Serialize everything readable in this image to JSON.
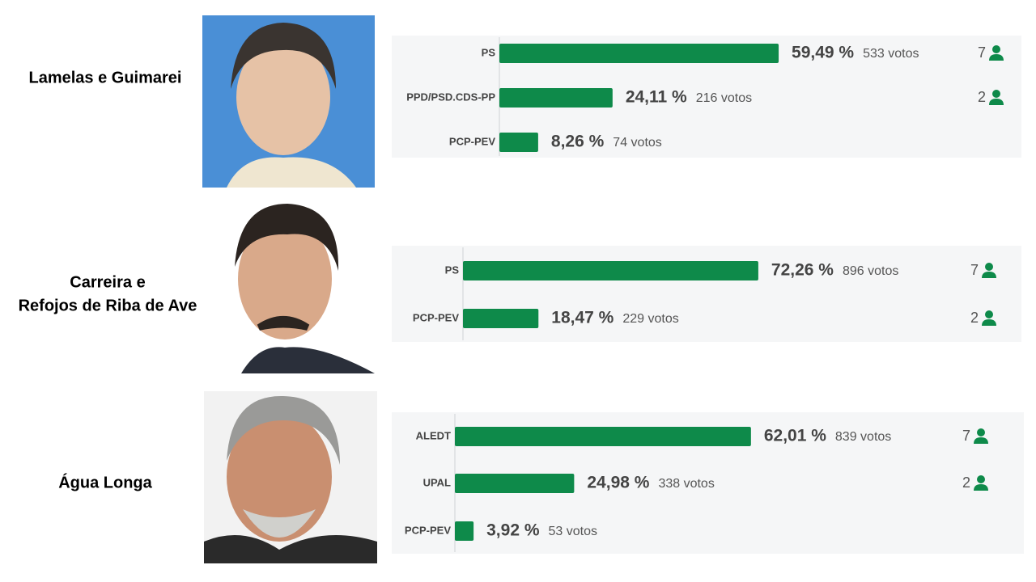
{
  "chart_data": [
    {
      "type": "bar",
      "location": [
        "Lamelas e Guimarei"
      ],
      "categories": [
        "PS",
        "PPD/PSD.CDS-PP",
        "PCP-PEV"
      ],
      "values": [
        59.49,
        24.11,
        8.26
      ],
      "value_labels": [
        "59,49 %",
        "24,11 %",
        "8,26 %"
      ],
      "votes": [
        "533 votos",
        "216 votos",
        "74 votos"
      ],
      "seats": [
        7,
        2,
        null
      ],
      "xlim": [
        0,
        100
      ],
      "color": "#0e8a4a"
    },
    {
      "type": "bar",
      "location": [
        "Carreira e",
        "Refojos de Riba de Ave"
      ],
      "categories": [
        "PS",
        "PCP-PEV"
      ],
      "values": [
        72.26,
        18.47
      ],
      "value_labels": [
        "72,26 %",
        "18,47 %"
      ],
      "votes": [
        "896 votos",
        "229 votos"
      ],
      "seats": [
        7,
        2
      ],
      "xlim": [
        0,
        100
      ],
      "color": "#0e8a4a"
    },
    {
      "type": "bar",
      "location": [
        "Água Longa"
      ],
      "categories": [
        "ALEDT",
        "UPAL",
        "PCP-PEV"
      ],
      "values": [
        62.01,
        24.98,
        3.92
      ],
      "value_labels": [
        "62,01 %",
        "24,98 %",
        "3,92 %"
      ],
      "votes": [
        "839 votos",
        "338 votos",
        "53 votos"
      ],
      "seats": [
        7,
        2,
        null
      ],
      "xlim": [
        0,
        100
      ],
      "color": "#0e8a4a"
    }
  ]
}
